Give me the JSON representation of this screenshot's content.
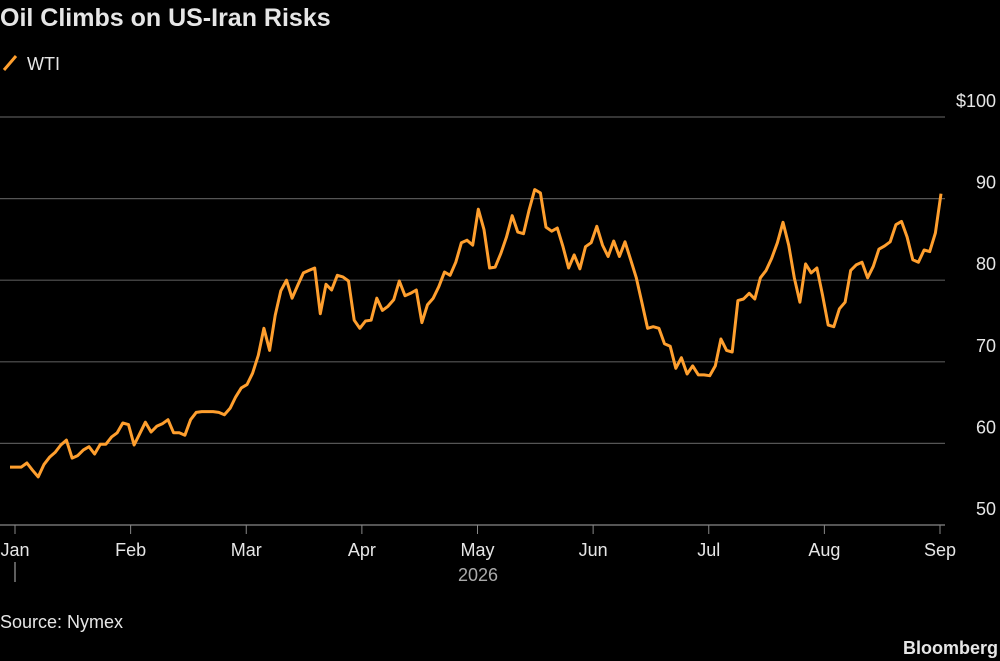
{
  "chart_data": {
    "type": "line",
    "title": "Oil Climbs on US-Iran Risks",
    "series": [
      {
        "name": "WTI",
        "color": "#ff9f2e",
        "values": [
          57.1,
          57.1,
          57.1,
          57.6,
          56.7,
          55.9,
          57.4,
          58.3,
          58.9,
          59.8,
          60.4,
          58.2,
          58.5,
          59.2,
          59.6,
          58.7,
          59.9,
          59.9,
          60.8,
          61.3,
          62.5,
          62.3,
          59.8,
          61.2,
          62.6,
          61.4,
          62.1,
          62.4,
          62.9,
          61.3,
          61.3,
          61.0,
          62.9,
          63.8,
          63.9,
          63.9,
          63.9,
          63.8,
          63.5,
          64.3,
          65.7,
          66.8,
          67.2,
          68.6,
          70.8,
          74.1,
          71.4,
          75.7,
          78.7,
          80.0,
          77.8,
          79.4,
          80.9,
          81.2,
          81.5,
          75.9,
          79.5,
          78.8,
          80.6,
          80.4,
          79.9,
          75.1,
          74.1,
          75.0,
          75.1,
          77.8,
          76.3,
          76.8,
          77.6,
          79.9,
          78.1,
          78.4,
          78.8,
          74.8,
          77.0,
          77.8,
          79.2,
          81.0,
          80.6,
          82.2,
          84.6,
          84.9,
          84.3,
          88.7,
          86.2,
          81.5,
          81.6,
          83.3,
          85.3,
          87.9,
          85.9,
          85.7,
          88.6,
          91.1,
          90.7,
          86.5,
          86.0,
          86.4,
          84.1,
          81.5,
          83.1,
          81.4,
          84.1,
          84.6,
          86.6,
          84.3,
          82.9,
          84.8,
          82.9,
          84.7,
          82.5,
          80.3,
          77.2,
          74.1,
          74.3,
          74.1,
          72.2,
          71.9,
          69.2,
          70.5,
          68.5,
          69.5,
          68.4,
          68.4,
          68.3,
          69.5,
          72.8,
          71.4,
          71.2,
          77.5,
          77.7,
          78.4,
          77.7,
          80.3,
          81.2,
          82.7,
          84.6,
          87.1,
          84.3,
          80.3,
          77.3,
          82.0,
          80.9,
          81.5,
          78.2,
          74.5,
          74.3,
          76.5,
          77.3,
          81.2,
          81.9,
          82.2,
          80.3,
          81.7,
          83.8,
          84.2,
          84.7,
          86.8,
          87.2,
          85.3,
          82.5,
          82.2,
          83.7,
          83.5,
          85.8,
          90.6
        ]
      }
    ],
    "xticks": [
      "Jan",
      "Feb",
      "Mar",
      "Apr",
      "May",
      "Jun",
      "Jul",
      "Aug",
      "Sep"
    ],
    "xlabel": "2026",
    "ylim": [
      50,
      100
    ],
    "yticks": [
      {
        "value": 100,
        "label": "$100"
      },
      90,
      80,
      70,
      60,
      50
    ],
    "grid": true,
    "source": "Source: Nymex",
    "brand": "Bloomberg"
  }
}
